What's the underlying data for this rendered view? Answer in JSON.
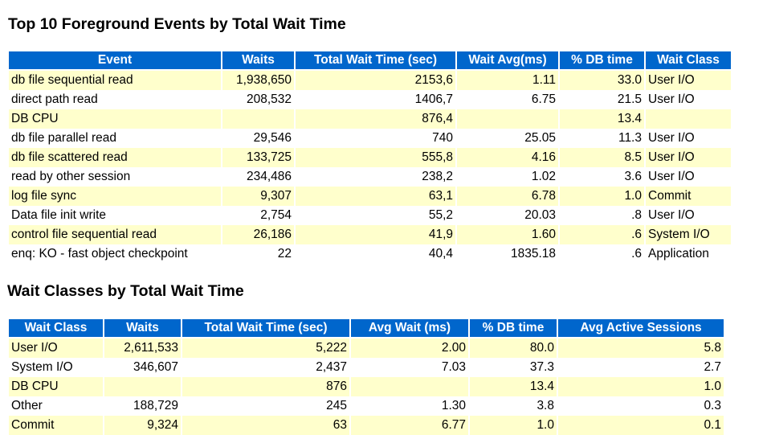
{
  "section1": {
    "title": "Top 10 Foreground Events by Total Wait Time",
    "columns": [
      "Event",
      "Waits",
      "Total Wait Time (sec)",
      "Wait Avg(ms)",
      "% DB time",
      "Wait Class"
    ],
    "rows": [
      [
        "db file sequential read",
        "1,938,650",
        "2153,6",
        "1.11",
        "33.0",
        "User I/O"
      ],
      [
        "direct path read",
        "208,532",
        "1406,7",
        "6.75",
        "21.5",
        "User I/O"
      ],
      [
        "DB CPU",
        "",
        "876,4",
        "",
        "13.4",
        ""
      ],
      [
        "db file parallel read",
        "29,546",
        "740",
        "25.05",
        "11.3",
        "User I/O"
      ],
      [
        "db file scattered read",
        "133,725",
        "555,8",
        "4.16",
        "8.5",
        "User I/O"
      ],
      [
        "read by other session",
        "234,486",
        "238,2",
        "1.02",
        "3.6",
        "User I/O"
      ],
      [
        "log file sync",
        "9,307",
        "63,1",
        "6.78",
        "1.0",
        "Commit"
      ],
      [
        "Data file init write",
        "2,754",
        "55,2",
        "20.03",
        ".8",
        "User I/O"
      ],
      [
        "control file sequential read",
        "26,186",
        "41,9",
        "1.60",
        ".6",
        "System I/O"
      ],
      [
        "enq: KO - fast object checkpoint",
        "22",
        "40,4",
        "1835.18",
        ".6",
        "Application"
      ]
    ]
  },
  "section2": {
    "title": "Wait Classes by Total Wait Time",
    "columns": [
      "Wait Class",
      "Waits",
      "Total Wait Time (sec)",
      "Avg Wait (ms)",
      "% DB time",
      "Avg Active Sessions"
    ],
    "rows": [
      [
        "User I/O",
        "2,611,533",
        "5,222",
        "2.00",
        "80.0",
        "5.8"
      ],
      [
        "System I/O",
        "346,607",
        "2,437",
        "7.03",
        "37.3",
        "2.7"
      ],
      [
        "DB CPU",
        "",
        "876",
        "",
        "13.4",
        "1.0"
      ],
      [
        "Other",
        "188,729",
        "245",
        "1.30",
        "3.8",
        "0.3"
      ],
      [
        "Commit",
        "9,324",
        "63",
        "6.77",
        "1.0",
        "0.1"
      ]
    ]
  },
  "colors": {
    "header_bg": "#0066cc",
    "header_fg": "#ffffff",
    "row_highlight": "#ffffcc"
  }
}
